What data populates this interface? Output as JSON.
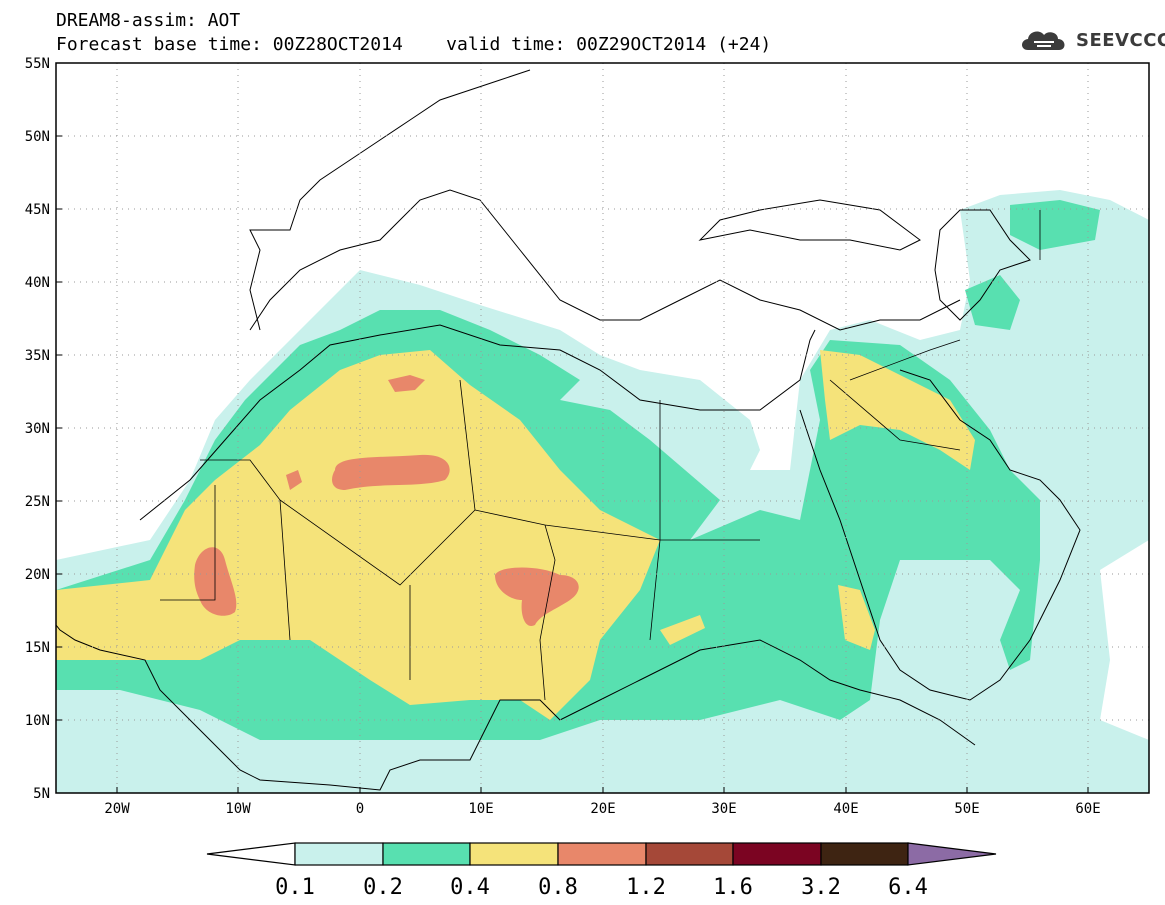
{
  "header": {
    "title": "DREAM8-assim: AOT",
    "base_label": "Forecast base time: 00Z28OCT2014",
    "valid_label": "valid time: 00Z29OCT2014 (+24)"
  },
  "logo": {
    "text": "SEEVCCC",
    "icon": "cloud-icon"
  },
  "axes": {
    "lat_labels": [
      "55N",
      "50N",
      "45N",
      "40N",
      "35N",
      "30N",
      "25N",
      "20N",
      "15N",
      "10N",
      "5N"
    ],
    "lon_labels": [
      "20W",
      "10W",
      "0",
      "10E",
      "20E",
      "30E",
      "40E",
      "50E",
      "60E"
    ]
  },
  "legend": {
    "thresholds": [
      "0.1",
      "0.2",
      "0.4",
      "0.8",
      "1.2",
      "1.6",
      "3.2",
      "6.4"
    ],
    "colors": [
      "#ffffff",
      "#c9f1ec",
      "#58e0b0",
      "#f5e37a",
      "#e8876a",
      "#a54838",
      "#7b0422",
      "#3e2412",
      "#8c6ba5"
    ]
  },
  "map": {
    "variable": "AOT",
    "lon_range": [
      -25,
      65
    ],
    "lat_range": [
      5,
      55
    ],
    "grid": "dotted"
  }
}
